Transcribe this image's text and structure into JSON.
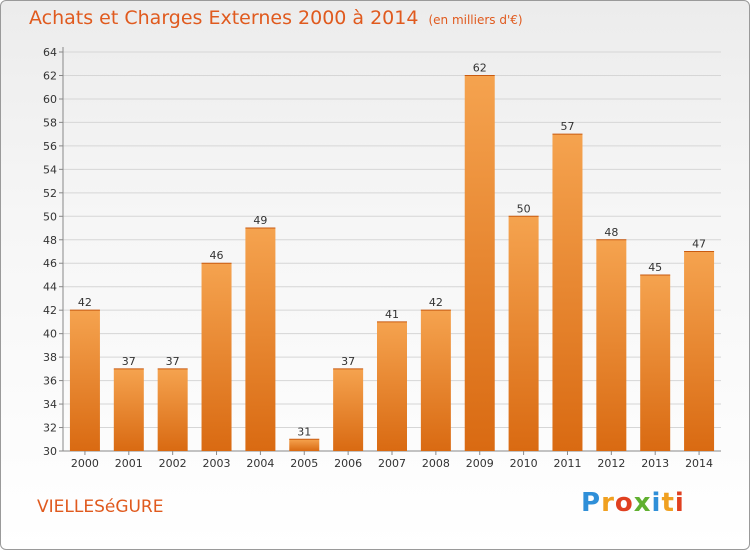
{
  "title": "Achats et Charges Externes 2000 à 2014",
  "subtitle": "(en milliers d'€)",
  "commune": "VIELLESéGURE",
  "logo": {
    "letters": [
      "P",
      "r",
      "o",
      "x",
      "i",
      "t",
      "i"
    ],
    "colors": [
      "#2f8fd8",
      "#f0a020",
      "#e04020",
      "#60b030",
      "#2f8fd8",
      "#f0a020",
      "#e04020"
    ]
  },
  "colors": {
    "accent": "#e05a1e",
    "bar_top": "#f5a34f",
    "bar_bottom": "#d96a12"
  },
  "chart_data": {
    "type": "bar",
    "categories": [
      "2000",
      "2001",
      "2002",
      "2003",
      "2004",
      "2005",
      "2006",
      "2007",
      "2008",
      "2009",
      "2010",
      "2011",
      "2012",
      "2013",
      "2014"
    ],
    "values": [
      42,
      37,
      37,
      46,
      49,
      31,
      37,
      41,
      42,
      62,
      50,
      57,
      48,
      45,
      47
    ],
    "ylim": [
      30,
      64
    ],
    "yticks": [
      30,
      32,
      34,
      36,
      38,
      40,
      42,
      44,
      46,
      48,
      50,
      52,
      54,
      56,
      58,
      60,
      62,
      64
    ],
    "grid": true
  }
}
